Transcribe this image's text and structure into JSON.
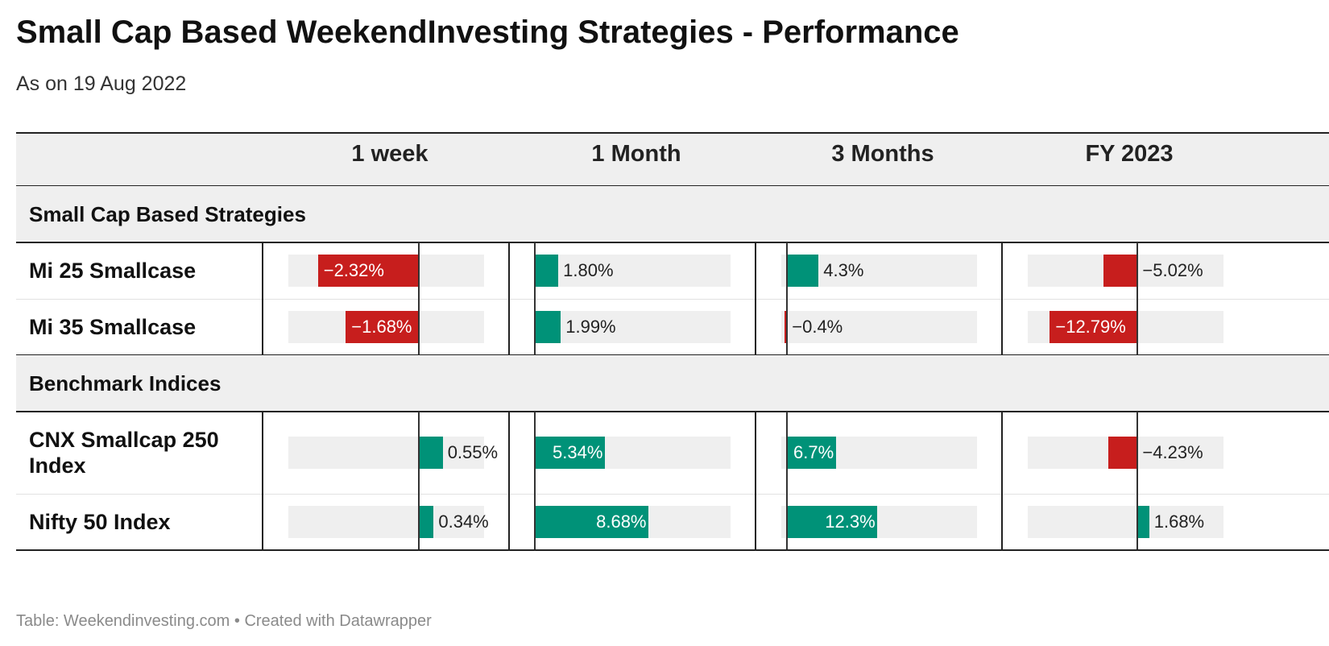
{
  "title": "Small Cap Based WeekendInvesting Strategies - Performance",
  "subtitle": "As on 19 Aug 2022",
  "footer": "Table: Weekendinvesting.com • Created with Datawrapper",
  "colors": {
    "positive": "#009278",
    "negative": "#c71e1d",
    "track": "#efefef",
    "header_bg": "#efefef"
  },
  "chart_data": {
    "type": "table",
    "columns": [
      {
        "label": "1 week",
        "domain": [
          -3.0,
          1.5
        ]
      },
      {
        "label": "1 Month",
        "domain": [
          0,
          15.0
        ]
      },
      {
        "label": "3 Months",
        "domain": [
          -0.8,
          26.0
        ]
      },
      {
        "label": "FY 2023",
        "domain": [
          -16.0,
          12.5
        ]
      }
    ],
    "groups": [
      {
        "label": "Small Cap Based Strategies",
        "rows": [
          {
            "label": "Mi 25 Smallcase",
            "values": [
              -2.32,
              1.8,
              4.3,
              -5.02
            ],
            "display": [
              "−2.32%",
              "1.80%",
              "4.3%",
              "−5.02%"
            ]
          },
          {
            "label": "Mi 35 Smallcase",
            "values": [
              -1.68,
              1.99,
              -0.4,
              -12.79
            ],
            "display": [
              "−1.68%",
              "1.99%",
              "−0.4%",
              "−12.79%"
            ]
          }
        ]
      },
      {
        "label": "Benchmark Indices",
        "rows": [
          {
            "label": "CNX Smallcap 250 Index",
            "values": [
              0.55,
              5.34,
              6.7,
              -4.23
            ],
            "display": [
              "0.55%",
              "5.34%",
              "6.7%",
              "−4.23%"
            ]
          },
          {
            "label": "Nifty 50 Index",
            "values": [
              0.34,
              8.68,
              12.3,
              1.68
            ],
            "display": [
              "0.34%",
              "8.68%",
              "12.3%",
              "1.68%"
            ]
          }
        ]
      }
    ]
  }
}
